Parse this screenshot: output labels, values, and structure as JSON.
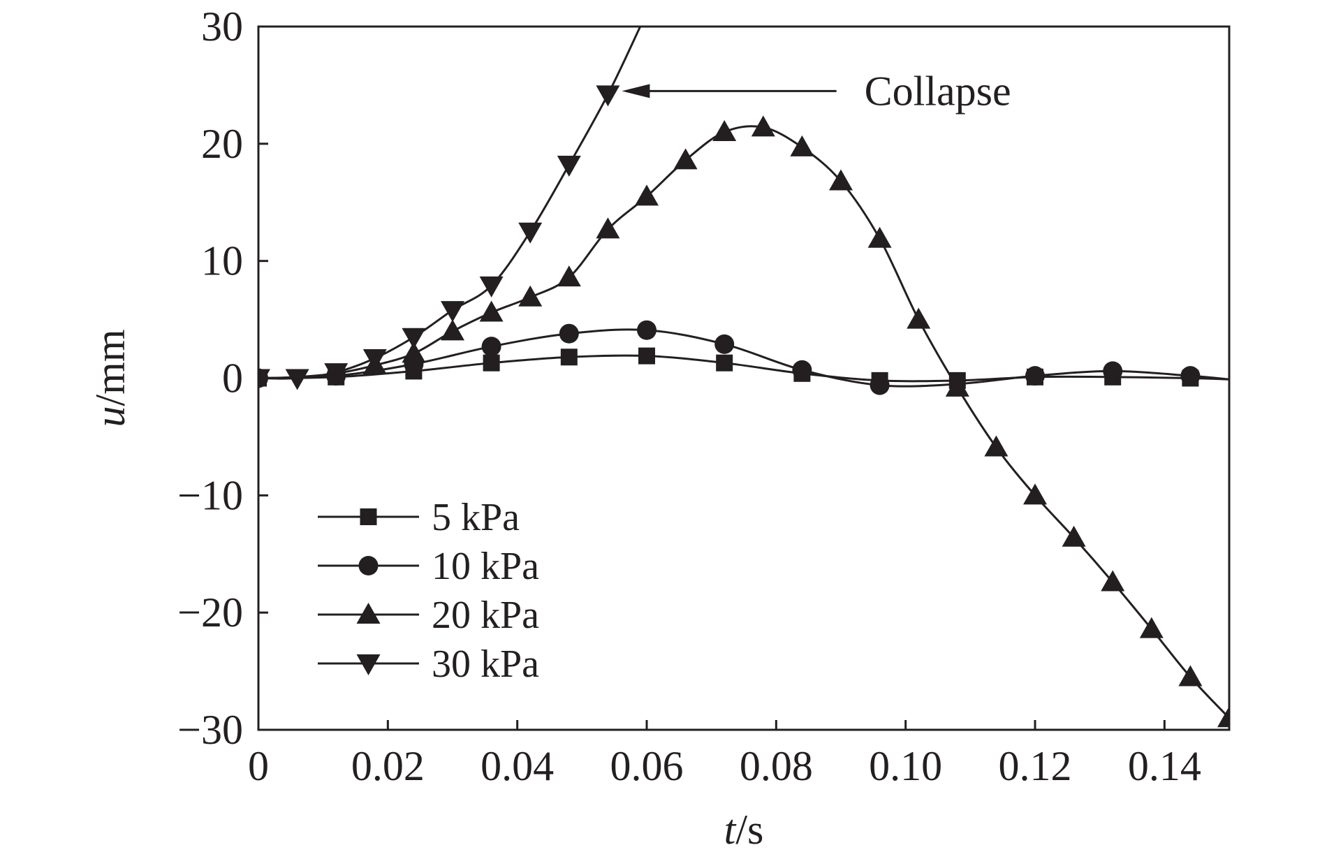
{
  "chart_data": {
    "type": "line",
    "xlabel_var": "t",
    "xlabel_unit": "/s",
    "ylabel_var": "u",
    "ylabel_unit": "/mm",
    "xlim": [
      0,
      0.15
    ],
    "ylim": [
      -30,
      30
    ],
    "xticks": [
      0,
      0.02,
      0.04,
      0.06,
      0.08,
      0.1,
      0.12,
      0.14
    ],
    "xtick_labels": [
      "0",
      "0.02",
      "0.04",
      "0.06",
      "0.08",
      "0.10",
      "0.12",
      "0.14"
    ],
    "yticks": [
      -30,
      -20,
      -10,
      0,
      10,
      20,
      30
    ],
    "ytick_labels": [
      "−30",
      "−20",
      "−10",
      "0",
      "10",
      "20",
      "30"
    ],
    "grid": false,
    "legend_position": "bottom-left",
    "color": "#231f20",
    "series": [
      {
        "name": "5 kPa",
        "marker": "square",
        "curve": [
          [
            0,
            0
          ],
          [
            0.012,
            0.1
          ],
          [
            0.024,
            0.6
          ],
          [
            0.036,
            1.3
          ],
          [
            0.048,
            1.8
          ],
          [
            0.06,
            1.9
          ],
          [
            0.072,
            1.3
          ],
          [
            0.084,
            0.4
          ],
          [
            0.096,
            -0.2
          ],
          [
            0.108,
            -0.2
          ],
          [
            0.12,
            0.1
          ],
          [
            0.132,
            0.1
          ],
          [
            0.144,
            0.0
          ],
          [
            0.15,
            -0.1
          ]
        ],
        "markers": [
          [
            0,
            0
          ],
          [
            0.012,
            0.1
          ],
          [
            0.024,
            0.6
          ],
          [
            0.036,
            1.3
          ],
          [
            0.048,
            1.8
          ],
          [
            0.06,
            1.9
          ],
          [
            0.072,
            1.3
          ],
          [
            0.084,
            0.4
          ],
          [
            0.096,
            -0.2
          ],
          [
            0.108,
            -0.2
          ],
          [
            0.12,
            0.1
          ],
          [
            0.132,
            0.1
          ],
          [
            0.144,
            0.0
          ]
        ]
      },
      {
        "name": "10 kPa",
        "marker": "circle",
        "curve": [
          [
            0,
            0
          ],
          [
            0.012,
            0.2
          ],
          [
            0.024,
            1.2
          ],
          [
            0.036,
            2.7
          ],
          [
            0.048,
            3.8
          ],
          [
            0.06,
            4.1
          ],
          [
            0.072,
            2.9
          ],
          [
            0.084,
            0.7
          ],
          [
            0.096,
            -0.6
          ],
          [
            0.108,
            -0.5
          ],
          [
            0.12,
            0.2
          ],
          [
            0.132,
            0.6
          ],
          [
            0.144,
            0.2
          ],
          [
            0.15,
            -0.1
          ]
        ],
        "markers": [
          [
            0,
            0
          ],
          [
            0.012,
            0.2
          ],
          [
            0.024,
            1.2
          ],
          [
            0.036,
            2.7
          ],
          [
            0.048,
            3.8
          ],
          [
            0.06,
            4.1
          ],
          [
            0.072,
            2.9
          ],
          [
            0.084,
            0.7
          ],
          [
            0.096,
            -0.6
          ],
          [
            0.12,
            0.2
          ],
          [
            0.132,
            0.6
          ],
          [
            0.144,
            0.2
          ]
        ]
      },
      {
        "name": "20 kPa",
        "marker": "triangle-up",
        "curve": [
          [
            0,
            0
          ],
          [
            0.006,
            0.1
          ],
          [
            0.012,
            0.4
          ],
          [
            0.018,
            1.1
          ],
          [
            0.024,
            2.1
          ],
          [
            0.03,
            4.0
          ],
          [
            0.036,
            5.6
          ],
          [
            0.042,
            6.9
          ],
          [
            0.048,
            8.6
          ],
          [
            0.054,
            12.7
          ],
          [
            0.06,
            15.5
          ],
          [
            0.066,
            18.6
          ],
          [
            0.072,
            21.0
          ],
          [
            0.078,
            21.4
          ],
          [
            0.084,
            19.7
          ],
          [
            0.09,
            16.8
          ],
          [
            0.096,
            11.9
          ],
          [
            0.102,
            5.0
          ],
          [
            0.108,
            -0.8
          ],
          [
            0.114,
            -5.9
          ],
          [
            0.12,
            -10.0
          ],
          [
            0.126,
            -13.6
          ],
          [
            0.132,
            -17.4
          ],
          [
            0.138,
            -21.4
          ],
          [
            0.144,
            -25.5
          ],
          [
            0.15,
            -29.0
          ]
        ],
        "markers": [
          [
            0.018,
            1.1
          ],
          [
            0.024,
            2.1
          ],
          [
            0.03,
            4.0
          ],
          [
            0.036,
            5.6
          ],
          [
            0.042,
            6.9
          ],
          [
            0.048,
            8.6
          ],
          [
            0.054,
            12.7
          ],
          [
            0.06,
            15.5
          ],
          [
            0.066,
            18.6
          ],
          [
            0.072,
            21.0
          ],
          [
            0.078,
            21.4
          ],
          [
            0.084,
            19.7
          ],
          [
            0.09,
            16.8
          ],
          [
            0.096,
            11.9
          ],
          [
            0.102,
            5.0
          ],
          [
            0.108,
            -0.8
          ],
          [
            0.114,
            -5.9
          ],
          [
            0.12,
            -10.0
          ],
          [
            0.126,
            -13.6
          ],
          [
            0.132,
            -17.4
          ],
          [
            0.138,
            -21.4
          ],
          [
            0.144,
            -25.5
          ],
          [
            0.15,
            -29.0
          ]
        ]
      },
      {
        "name": "30 kPa",
        "marker": "triangle-down",
        "curve": [
          [
            0,
            0
          ],
          [
            0.006,
            0
          ],
          [
            0.012,
            0.5
          ],
          [
            0.018,
            1.7
          ],
          [
            0.024,
            3.5
          ],
          [
            0.03,
            5.8
          ],
          [
            0.036,
            7.9
          ],
          [
            0.042,
            12.5
          ],
          [
            0.048,
            18.2
          ],
          [
            0.054,
            24.2
          ],
          [
            0.059,
            30.0
          ]
        ],
        "markers": [
          [
            0,
            0
          ],
          [
            0.006,
            0
          ],
          [
            0.012,
            0.5
          ],
          [
            0.018,
            1.7
          ],
          [
            0.024,
            3.5
          ],
          [
            0.03,
            5.8
          ],
          [
            0.036,
            7.9
          ],
          [
            0.042,
            12.5
          ],
          [
            0.048,
            18.2
          ],
          [
            0.054,
            24.2
          ]
        ]
      }
    ],
    "annotations": [
      {
        "text": "Collapse",
        "arrow_to": [
          0.054,
          24.2
        ],
        "text_at": [
          0.085,
          24.2
        ]
      }
    ]
  }
}
